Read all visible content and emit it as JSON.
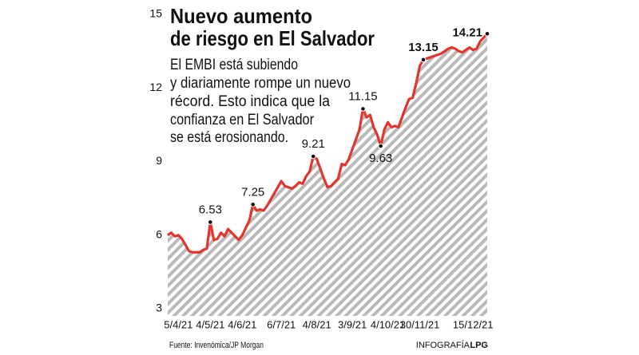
{
  "chart_data": {
    "type": "line",
    "title": [
      "Nuevo aumento",
      "de riesgo en El Salvador"
    ],
    "subtitle": [
      "El EMBI está subiendo",
      "y diariamente rompe un nuevo",
      "récord. Esto indica que la",
      "confianza en El Salvador",
      "se está erosionando."
    ],
    "source": "Fuente: Invenómica/JP Morgan",
    "credit": "INFOGRAFÍA",
    "credit_brand": "LPG",
    "categories": [
      null,
      null,
      null,
      "5/4/21",
      null,
      null,
      null,
      null,
      null,
      null,
      null,
      null,
      "4/5/21",
      null,
      null,
      null,
      null,
      null,
      null,
      null,
      null,
      "4/6/21",
      null,
      null,
      null,
      null,
      null,
      null,
      null,
      null,
      null,
      null,
      "6/7/21",
      null,
      null,
      null,
      null,
      null,
      null,
      null,
      null,
      null,
      "4/8/21",
      null,
      null,
      null,
      null,
      null,
      null,
      null,
      null,
      null,
      "3/9/21",
      null,
      null,
      null,
      null,
      null,
      null,
      null,
      null,
      null,
      "4/10/21",
      null,
      null,
      null,
      null,
      null,
      null,
      null,
      null,
      "30/11/21",
      null,
      null,
      null,
      null,
      null,
      null,
      null,
      null,
      null,
      null,
      null,
      null,
      null,
      null,
      "15/12/21",
      null,
      null,
      null,
      null
    ],
    "values": [
      6.0,
      6.1,
      5.95,
      6.0,
      5.85,
      5.6,
      5.35,
      5.3,
      5.3,
      5.3,
      5.4,
      5.45,
      6.53,
      5.8,
      5.85,
      6.1,
      5.95,
      6.25,
      6.1,
      5.95,
      5.8,
      6.0,
      6.3,
      6.6,
      7.25,
      7.0,
      7.05,
      7.0,
      7.2,
      7.45,
      7.7,
      7.95,
      8.2,
      8.0,
      7.95,
      7.9,
      8.0,
      8.15,
      8.1,
      8.4,
      8.6,
      9.21,
      9.1,
      8.7,
      8.3,
      7.95,
      8.0,
      8.15,
      8.3,
      8.9,
      8.85,
      9.1,
      9.5,
      9.9,
      10.3,
      11.15,
      10.8,
      10.9,
      10.4,
      10.1,
      9.63,
      10.3,
      10.6,
      10.4,
      10.45,
      10.4,
      10.8,
      11.2,
      11.55,
      11.6,
      12.2,
      12.9,
      13.15,
      13.2,
      13.25,
      13.3,
      13.35,
      13.4,
      13.5,
      13.6,
      13.65,
      13.6,
      13.5,
      13.45,
      13.55,
      13.65,
      13.55,
      13.6,
      13.9,
      14.05,
      14.21
    ],
    "annotated_points": [
      12,
      24,
      41,
      55,
      60,
      72,
      90
    ],
    "color": "#e2352b",
    "ylim": [
      3,
      15
    ],
    "yticks": [
      3,
      6,
      9,
      12,
      15
    ],
    "grid": false
  }
}
